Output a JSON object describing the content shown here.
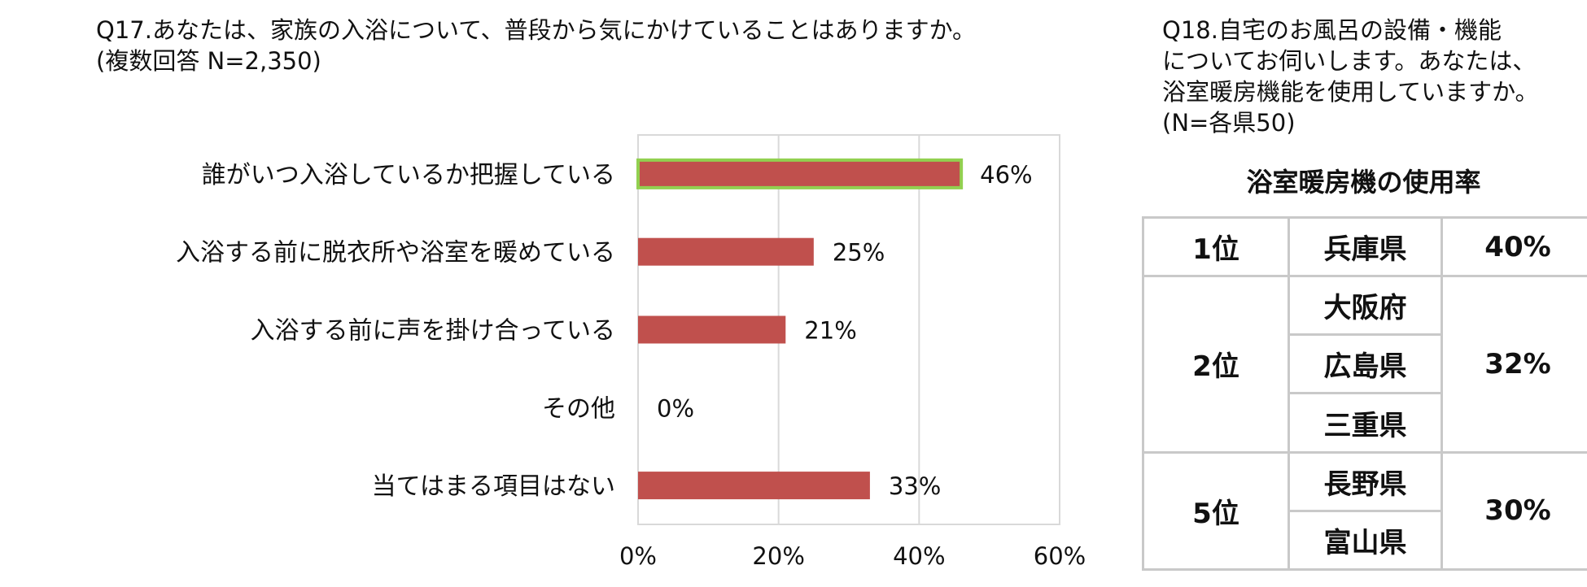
{
  "q17": {
    "title_line1": "Q17.あなたは、家族の入浴について、普段から気にかけていることはありますか。",
    "title_line2": "(複数回答 N=2,350)"
  },
  "chart_data": {
    "type": "bar",
    "orientation": "horizontal",
    "categories": [
      "誰がいつ入浴しているか把握している",
      "入浴する前に脱衣所や浴室を暖めている",
      "入浴する前に声を掛け合っている",
      "その他",
      "当てはまる項目はない"
    ],
    "values": [
      46,
      25,
      21,
      0,
      33
    ],
    "data_labels": [
      "46%",
      "25%",
      "21%",
      "0%",
      "33%"
    ],
    "xlim": [
      0,
      60
    ],
    "xticks": [
      0,
      20,
      40,
      60
    ],
    "xtick_labels": [
      "0%",
      "20%",
      "40%",
      "60%"
    ],
    "grid": true,
    "highlighted_category": "誰がいつ入浴しているか把握している",
    "bar_color": "#c0504d",
    "highlight_outline_color": "#92d050",
    "gridline_color": "#d9d9d9"
  },
  "q18": {
    "title_lines": [
      "Q18.自宅のお風呂の設備・機能",
      "についてお伺いします。あなたは、",
      "浴室暖房機能を使用していますか。(N=各県50)"
    ],
    "table_title": "浴室暖房機の使用率",
    "groups": [
      {
        "rank": "1位",
        "prefectures": [
          "兵庫県"
        ],
        "rate": "40%"
      },
      {
        "rank": "2位",
        "prefectures": [
          "大阪府",
          "広島県",
          "三重県"
        ],
        "rate": "32%"
      },
      {
        "rank": "5位",
        "prefectures": [
          "長野県",
          "富山県"
        ],
        "rate": "30%"
      }
    ]
  }
}
